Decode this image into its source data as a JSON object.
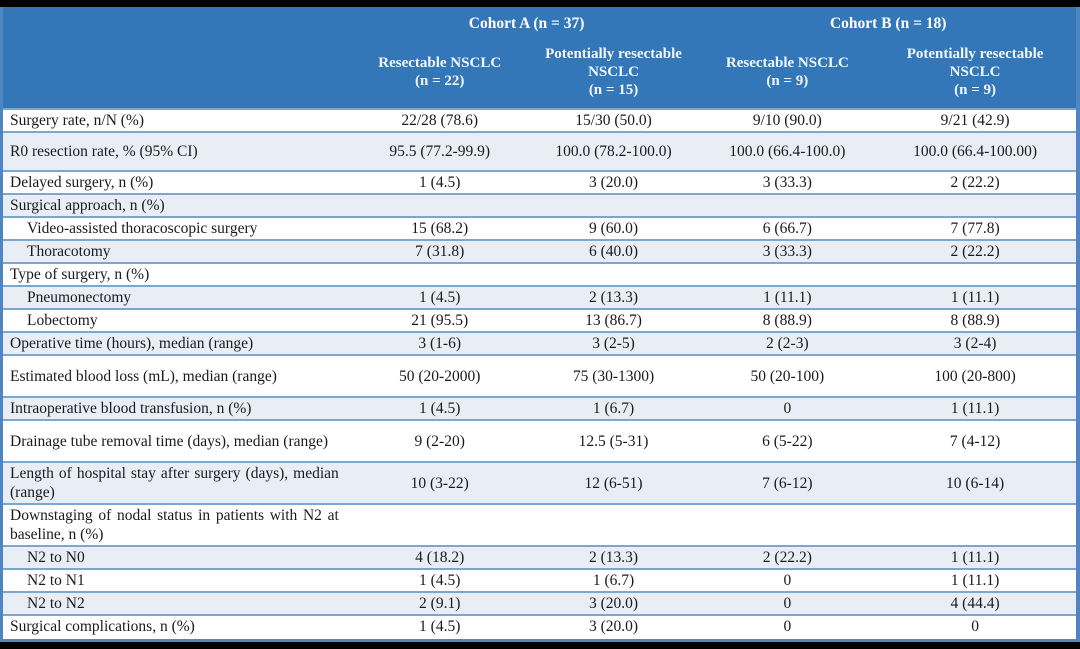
{
  "title": "Surgical outcomes table",
  "colors": {
    "header_bg": "#3377b8",
    "alt_row_bg": "#e9eef6",
    "row_border": "#7aa6d2",
    "outer_border": "#4e86c4",
    "header_text": "#ffffff",
    "body_text": "#1a1a1a",
    "frame_bg": "#000000"
  },
  "header": {
    "cohorts": [
      {
        "label": "Cohort A (n = 37)"
      },
      {
        "label": "Cohort B (n = 18)"
      }
    ],
    "columns": [
      {
        "name": "Resectable NSCLC",
        "n": "(n = 22)"
      },
      {
        "name": "Potentially resectable NSCLC",
        "n": "(n = 15)"
      },
      {
        "name": "Resectable NSCLC",
        "n": "(n = 9)"
      },
      {
        "name": "Potentially resectable NSCLC",
        "n": "(n = 9)"
      }
    ]
  },
  "rows": [
    {
      "label": "Surgery rate, n/N (%)",
      "indent": false,
      "values": [
        "22/28 (78.6)",
        "15/30 (50.0)",
        "9/10 (90.0)",
        "9/21 (42.9)"
      ]
    },
    {
      "label": "R0 resection rate, % (95% CI)",
      "indent": false,
      "values": [
        "95.5 (77.2-99.9)",
        "100.0 (78.2-100.0)",
        "100.0 (66.4-100.0)",
        "100.0 (66.4-100.00)"
      ]
    },
    {
      "label": "Delayed surgery, n (%)",
      "indent": false,
      "values": [
        "1 (4.5)",
        "3 (20.0)",
        "3 (33.3)",
        "2 (22.2)"
      ]
    },
    {
      "label": "Surgical approach, n (%)",
      "indent": false,
      "values": [
        "",
        "",
        "",
        ""
      ]
    },
    {
      "label": "Video-assisted thoracoscopic surgery",
      "indent": true,
      "values": [
        "15 (68.2)",
        "9 (60.0)",
        "6 (66.7)",
        "7 (77.8)"
      ]
    },
    {
      "label": "Thoracotomy",
      "indent": true,
      "values": [
        "7 (31.8)",
        "6 (40.0)",
        "3 (33.3)",
        "2 (22.2)"
      ]
    },
    {
      "label": "Type of surgery, n (%)",
      "indent": false,
      "values": [
        "",
        "",
        "",
        ""
      ]
    },
    {
      "label": "Pneumonectomy",
      "indent": true,
      "values": [
        "1 (4.5)",
        "2 (13.3)",
        "1 (11.1)",
        "1 (11.1)"
      ]
    },
    {
      "label": "Lobectomy",
      "indent": true,
      "values": [
        "21 (95.5)",
        "13 (86.7)",
        "8 (88.9)",
        "8 (88.9)"
      ]
    },
    {
      "label": "Operative time (hours), median (range)",
      "indent": false,
      "values": [
        "3 (1-6)",
        "3 (2-5)",
        "2 (2-3)",
        "3 (2-4)"
      ]
    },
    {
      "label": "Estimated blood loss (mL), median (range)",
      "indent": false,
      "values": [
        "50 (20-2000)",
        "75 (30-1300)",
        "50 (20-100)",
        "100 (20-800)"
      ]
    },
    {
      "label": "Intraoperative blood transfusion, n (%)",
      "indent": false,
      "values": [
        "1 (4.5)",
        "1 (6.7)",
        "0",
        "1 (11.1)"
      ]
    },
    {
      "label": "Drainage tube removal time (days), median (range)",
      "indent": false,
      "values": [
        "9 (2-20)",
        "12.5 (5-31)",
        "6 (5-22)",
        "7 (4-12)"
      ]
    },
    {
      "label": "Length of hospital stay after surgery (days), median (range)",
      "indent": false,
      "values": [
        "10 (3-22)",
        "12 (6-51)",
        "7 (6-12)",
        "10 (6-14)"
      ]
    },
    {
      "label": "Downstaging of nodal status in patients with N2 at baseline, n (%)",
      "indent": false,
      "values": [
        "",
        "",
        "",
        ""
      ]
    },
    {
      "label": "N2 to N0",
      "indent": true,
      "values": [
        "4 (18.2)",
        "2 (13.3)",
        "2 (22.2)",
        "1 (11.1)"
      ]
    },
    {
      "label": "N2 to N1",
      "indent": true,
      "values": [
        "1 (4.5)",
        "1 (6.7)",
        "0",
        "1 (11.1)"
      ]
    },
    {
      "label": "N2 to N2",
      "indent": true,
      "values": [
        "2 (9.1)",
        "3 (20.0)",
        "0",
        "4 (44.4)"
      ]
    },
    {
      "label": "Surgical complications, n (%)",
      "indent": false,
      "values": [
        "1 (4.5)",
        "3 (20.0)",
        "0",
        "0"
      ]
    }
  ]
}
